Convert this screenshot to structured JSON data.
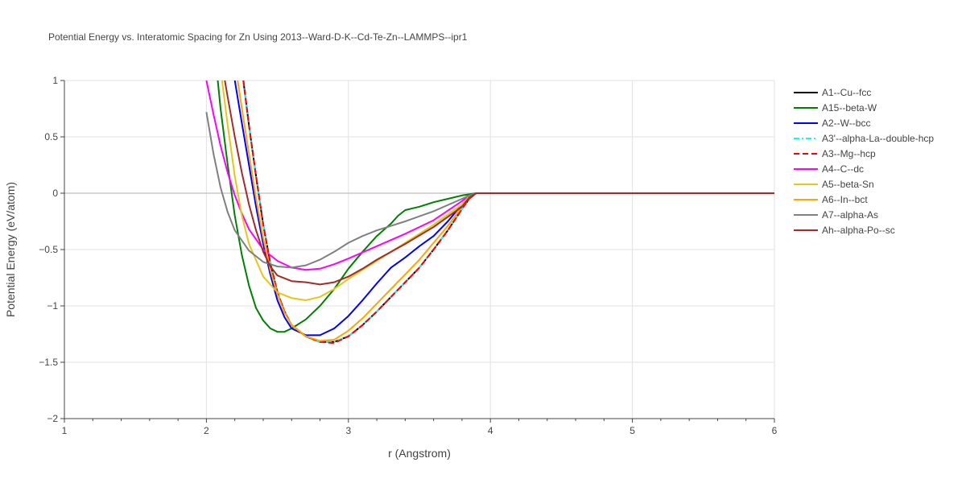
{
  "chart_data": {
    "type": "line",
    "title": "Potential Energy vs. Interatomic Spacing for Zn Using 2013--Ward-D-K--Cd-Te-Zn--LAMMPS--ipr1",
    "xlabel": "r (Angstrom)",
    "ylabel": "Potential Energy (eV/atom)",
    "xlim": [
      1,
      6
    ],
    "ylim": [
      -2,
      1
    ],
    "xticks": [
      1,
      2,
      3,
      4,
      5,
      6
    ],
    "xtick_labels": [
      "1",
      "2",
      "3",
      "4",
      "5",
      "6"
    ],
    "yticks": [
      1,
      0.5,
      0,
      -0.5,
      -1,
      -1.5,
      -2
    ],
    "ytick_labels": [
      "1",
      "0.5",
      "0",
      "−0.5",
      "−1",
      "−1.5",
      "−2"
    ],
    "grid": true,
    "legend_position": "right",
    "series": [
      {
        "name": "A1--Cu--fcc",
        "color": "#000000",
        "dash": "solid",
        "points": [
          [
            2.26,
            1.0
          ],
          [
            2.3,
            0.6
          ],
          [
            2.35,
            0.15
          ],
          [
            2.4,
            -0.28
          ],
          [
            2.45,
            -0.62
          ],
          [
            2.5,
            -0.88
          ],
          [
            2.55,
            -1.05
          ],
          [
            2.6,
            -1.17
          ],
          [
            2.7,
            -1.27
          ],
          [
            2.8,
            -1.32
          ],
          [
            2.9,
            -1.32
          ],
          [
            3.0,
            -1.27
          ],
          [
            3.1,
            -1.17
          ],
          [
            3.2,
            -1.05
          ],
          [
            3.3,
            -0.92
          ],
          [
            3.4,
            -0.79
          ],
          [
            3.5,
            -0.66
          ],
          [
            3.6,
            -0.5
          ],
          [
            3.7,
            -0.33
          ],
          [
            3.8,
            -0.14
          ],
          [
            3.85,
            -0.05
          ],
          [
            3.9,
            0
          ],
          [
            4.0,
            0
          ],
          [
            5.0,
            0
          ],
          [
            6.0,
            0
          ]
        ]
      },
      {
        "name": "A15--beta-W",
        "color": "#008000",
        "dash": "solid",
        "points": [
          [
            2.08,
            1.0
          ],
          [
            2.1,
            0.75
          ],
          [
            2.15,
            0.25
          ],
          [
            2.2,
            -0.2
          ],
          [
            2.25,
            -0.55
          ],
          [
            2.3,
            -0.82
          ],
          [
            2.35,
            -1.02
          ],
          [
            2.4,
            -1.13
          ],
          [
            2.45,
            -1.2
          ],
          [
            2.5,
            -1.23
          ],
          [
            2.55,
            -1.23
          ],
          [
            2.6,
            -1.2
          ],
          [
            2.7,
            -1.12
          ],
          [
            2.8,
            -1.0
          ],
          [
            2.9,
            -0.85
          ],
          [
            3.0,
            -0.67
          ],
          [
            3.1,
            -0.52
          ],
          [
            3.2,
            -0.38
          ],
          [
            3.3,
            -0.27
          ],
          [
            3.35,
            -0.2
          ],
          [
            3.4,
            -0.15
          ],
          [
            3.5,
            -0.12
          ],
          [
            3.6,
            -0.08
          ],
          [
            3.7,
            -0.05
          ],
          [
            3.8,
            -0.02
          ],
          [
            3.9,
            0
          ],
          [
            4.0,
            0
          ],
          [
            5.0,
            0
          ],
          [
            6.0,
            0
          ]
        ]
      },
      {
        "name": "A2--W--bcc",
        "color": "#0000ff",
        "dash": "solid",
        "points": [
          [
            2.2,
            1.0
          ],
          [
            2.25,
            0.62
          ],
          [
            2.3,
            0.25
          ],
          [
            2.35,
            -0.12
          ],
          [
            2.4,
            -0.45
          ],
          [
            2.45,
            -0.72
          ],
          [
            2.5,
            -0.95
          ],
          [
            2.55,
            -1.1
          ],
          [
            2.6,
            -1.2
          ],
          [
            2.7,
            -1.26
          ],
          [
            2.8,
            -1.26
          ],
          [
            2.9,
            -1.2
          ],
          [
            3.0,
            -1.09
          ],
          [
            3.1,
            -0.95
          ],
          [
            3.2,
            -0.8
          ],
          [
            3.3,
            -0.66
          ],
          [
            3.4,
            -0.57
          ],
          [
            3.5,
            -0.47
          ],
          [
            3.6,
            -0.38
          ],
          [
            3.7,
            -0.25
          ],
          [
            3.8,
            -0.1
          ],
          [
            3.85,
            -0.03
          ],
          [
            3.9,
            0
          ],
          [
            4.0,
            0
          ],
          [
            5.0,
            0
          ],
          [
            6.0,
            0
          ]
        ]
      },
      {
        "name": "A3'--alpha-La--double-hcp",
        "color": "#00ffff",
        "dash": "dashdot",
        "points": [
          [
            2.26,
            1.0
          ],
          [
            2.3,
            0.6
          ],
          [
            2.35,
            0.15
          ],
          [
            2.4,
            -0.28
          ],
          [
            2.45,
            -0.62
          ],
          [
            2.5,
            -0.88
          ],
          [
            2.55,
            -1.05
          ],
          [
            2.6,
            -1.17
          ],
          [
            2.7,
            -1.27
          ],
          [
            2.8,
            -1.32
          ],
          [
            2.9,
            -1.32
          ],
          [
            3.0,
            -1.27
          ],
          [
            3.1,
            -1.17
          ],
          [
            3.2,
            -1.05
          ],
          [
            3.3,
            -0.92
          ],
          [
            3.4,
            -0.79
          ],
          [
            3.5,
            -0.66
          ],
          [
            3.6,
            -0.5
          ],
          [
            3.7,
            -0.33
          ],
          [
            3.8,
            -0.14
          ],
          [
            3.85,
            -0.05
          ],
          [
            3.9,
            0
          ],
          [
            4.0,
            0
          ],
          [
            5.0,
            0
          ],
          [
            6.0,
            0
          ]
        ]
      },
      {
        "name": "A3--Mg--hcp",
        "color": "#ff0000",
        "dash": "dash",
        "points": [
          [
            2.26,
            1.0
          ],
          [
            2.3,
            0.6
          ],
          [
            2.35,
            0.15
          ],
          [
            2.4,
            -0.28
          ],
          [
            2.45,
            -0.62
          ],
          [
            2.5,
            -0.88
          ],
          [
            2.55,
            -1.05
          ],
          [
            2.6,
            -1.17
          ],
          [
            2.7,
            -1.27
          ],
          [
            2.8,
            -1.32
          ],
          [
            2.9,
            -1.33
          ],
          [
            3.0,
            -1.27
          ],
          [
            3.1,
            -1.17
          ],
          [
            3.2,
            -1.05
          ],
          [
            3.3,
            -0.92
          ],
          [
            3.4,
            -0.79
          ],
          [
            3.5,
            -0.66
          ],
          [
            3.6,
            -0.5
          ],
          [
            3.7,
            -0.33
          ],
          [
            3.8,
            -0.14
          ],
          [
            3.85,
            -0.05
          ],
          [
            3.9,
            0
          ],
          [
            4.0,
            0
          ],
          [
            5.0,
            0
          ],
          [
            6.0,
            0
          ]
        ]
      },
      {
        "name": "A4--C--dc",
        "color": "#ff00ff",
        "dash": "solid",
        "points": [
          [
            2.0,
            1.0
          ],
          [
            2.05,
            0.7
          ],
          [
            2.1,
            0.42
          ],
          [
            2.15,
            0.18
          ],
          [
            2.2,
            -0.02
          ],
          [
            2.25,
            -0.18
          ],
          [
            2.3,
            -0.32
          ],
          [
            2.4,
            -0.5
          ],
          [
            2.5,
            -0.6
          ],
          [
            2.6,
            -0.66
          ],
          [
            2.7,
            -0.68
          ],
          [
            2.8,
            -0.67
          ],
          [
            2.9,
            -0.63
          ],
          [
            3.0,
            -0.58
          ],
          [
            3.2,
            -0.47
          ],
          [
            3.4,
            -0.36
          ],
          [
            3.6,
            -0.24
          ],
          [
            3.8,
            -0.07
          ],
          [
            3.85,
            -0.02
          ],
          [
            3.9,
            0
          ],
          [
            4.0,
            0
          ],
          [
            5.0,
            0
          ],
          [
            6.0,
            0
          ]
        ]
      },
      {
        "name": "A5--beta-Sn",
        "color": "#e6c619",
        "dash": "solid",
        "points": [
          [
            2.11,
            1.0
          ],
          [
            2.15,
            0.6
          ],
          [
            2.2,
            0.15
          ],
          [
            2.25,
            -0.2
          ],
          [
            2.3,
            -0.45
          ],
          [
            2.4,
            -0.74
          ],
          [
            2.5,
            -0.88
          ],
          [
            2.6,
            -0.93
          ],
          [
            2.7,
            -0.95
          ],
          [
            2.8,
            -0.92
          ],
          [
            2.9,
            -0.85
          ],
          [
            3.0,
            -0.76
          ],
          [
            3.2,
            -0.6
          ],
          [
            3.4,
            -0.44
          ],
          [
            3.6,
            -0.28
          ],
          [
            3.8,
            -0.1
          ],
          [
            3.85,
            -0.03
          ],
          [
            3.9,
            0
          ],
          [
            4.0,
            0
          ],
          [
            5.0,
            0
          ],
          [
            6.0,
            0
          ]
        ]
      },
      {
        "name": "A6--In--bct",
        "color": "#ffa500",
        "dash": "solid",
        "points": [
          [
            2.22,
            1.0
          ],
          [
            2.25,
            0.75
          ],
          [
            2.3,
            0.35
          ],
          [
            2.35,
            -0.05
          ],
          [
            2.4,
            -0.4
          ],
          [
            2.45,
            -0.68
          ],
          [
            2.5,
            -0.9
          ],
          [
            2.55,
            -1.06
          ],
          [
            2.6,
            -1.17
          ],
          [
            2.7,
            -1.27
          ],
          [
            2.8,
            -1.31
          ],
          [
            2.9,
            -1.3
          ],
          [
            3.0,
            -1.22
          ],
          [
            3.1,
            -1.11
          ],
          [
            3.2,
            -0.98
          ],
          [
            3.3,
            -0.85
          ],
          [
            3.4,
            -0.72
          ],
          [
            3.5,
            -0.59
          ],
          [
            3.6,
            -0.44
          ],
          [
            3.7,
            -0.29
          ],
          [
            3.8,
            -0.12
          ],
          [
            3.85,
            -0.04
          ],
          [
            3.9,
            0
          ],
          [
            4.0,
            0
          ],
          [
            5.0,
            0
          ],
          [
            6.0,
            0
          ]
        ]
      },
      {
        "name": "A7--alpha-As",
        "color": "#808080",
        "dash": "solid",
        "points": [
          [
            2.0,
            0.72
          ],
          [
            2.05,
            0.35
          ],
          [
            2.1,
            0.05
          ],
          [
            2.15,
            -0.17
          ],
          [
            2.2,
            -0.33
          ],
          [
            2.3,
            -0.51
          ],
          [
            2.4,
            -0.61
          ],
          [
            2.5,
            -0.65
          ],
          [
            2.6,
            -0.66
          ],
          [
            2.7,
            -0.64
          ],
          [
            2.8,
            -0.59
          ],
          [
            2.9,
            -0.52
          ],
          [
            3.0,
            -0.44
          ],
          [
            3.1,
            -0.38
          ],
          [
            3.2,
            -0.33
          ],
          [
            3.4,
            -0.25
          ],
          [
            3.6,
            -0.16
          ],
          [
            3.8,
            -0.05
          ],
          [
            3.85,
            -0.02
          ],
          [
            3.9,
            0
          ],
          [
            4.0,
            0
          ],
          [
            5.0,
            0
          ],
          [
            6.0,
            0
          ]
        ]
      },
      {
        "name": "Ah--alpha-Po--sc",
        "color": "#a52a2a",
        "dash": "solid",
        "points": [
          [
            2.13,
            1.0
          ],
          [
            2.15,
            0.85
          ],
          [
            2.2,
            0.5
          ],
          [
            2.25,
            0.18
          ],
          [
            2.3,
            -0.1
          ],
          [
            2.35,
            -0.33
          ],
          [
            2.4,
            -0.52
          ],
          [
            2.45,
            -0.65
          ],
          [
            2.5,
            -0.73
          ],
          [
            2.6,
            -0.78
          ],
          [
            2.7,
            -0.79
          ],
          [
            2.8,
            -0.81
          ],
          [
            2.9,
            -0.79
          ],
          [
            3.0,
            -0.74
          ],
          [
            3.1,
            -0.67
          ],
          [
            3.2,
            -0.59
          ],
          [
            3.4,
            -0.45
          ],
          [
            3.6,
            -0.3
          ],
          [
            3.8,
            -0.12
          ],
          [
            3.85,
            -0.04
          ],
          [
            3.9,
            0
          ],
          [
            4.0,
            0
          ],
          [
            5.0,
            0
          ],
          [
            6.0,
            0
          ]
        ]
      }
    ]
  }
}
